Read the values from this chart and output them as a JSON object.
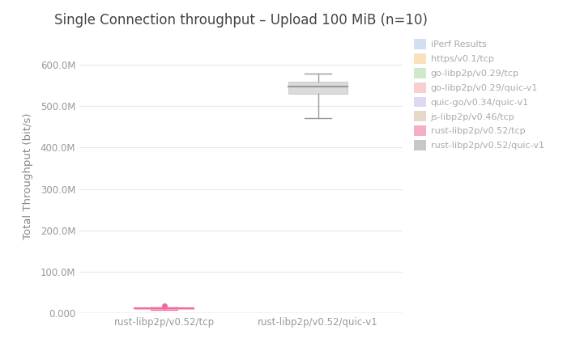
{
  "title": "Single Connection throughput – Upload 100 MiB (n=10)",
  "ylabel": "Total Throughput (bit/s)",
  "categories": [
    "rust-libp2p/v0.52/tcp",
    "rust-libp2p/v0.52/quic-v1"
  ],
  "tcp_box": {
    "whisker_low": 8000000,
    "q1": 9500000,
    "median": 11000000,
    "q3": 12500000,
    "whisker_high": 14500000,
    "outlier": 18000000,
    "color": "#f06ba0"
  },
  "quic_box": {
    "whisker_low": 472000000,
    "q1": 530000000,
    "median": 548000000,
    "q3": 560000000,
    "whisker_high": 578000000,
    "color": "#999999"
  },
  "ylim": [
    0,
    660000000
  ],
  "yticks": [
    0,
    100000000,
    200000000,
    300000000,
    400000000,
    500000000,
    600000000
  ],
  "ytick_labels": [
    "0.000",
    "100.0M",
    "200.0M",
    "300.0M",
    "400.0M",
    "500.0M",
    "600.0M"
  ],
  "background_color": "#ffffff",
  "grid_color": "#e8e8e8",
  "legend_entries": [
    {
      "label": "iPerf Results",
      "color": "#aec6e8"
    },
    {
      "label": "https/v0.1/tcp",
      "color": "#f6c98a"
    },
    {
      "label": "go-libp2p/v0.29/tcp",
      "color": "#a8d8a0"
    },
    {
      "label": "go-libp2p/v0.29/quic-v1",
      "color": "#f4a7a7"
    },
    {
      "label": "quic-go/v0.34/quic-v1",
      "color": "#c5b8e8"
    },
    {
      "label": "js-libp2p/v0.46/tcp",
      "color": "#d4b8a0"
    },
    {
      "label": "rust-libp2p/v0.52/tcp",
      "color": "#f06ba0"
    },
    {
      "label": "rust-libp2p/v0.52/quic-v1",
      "color": "#999999"
    }
  ]
}
